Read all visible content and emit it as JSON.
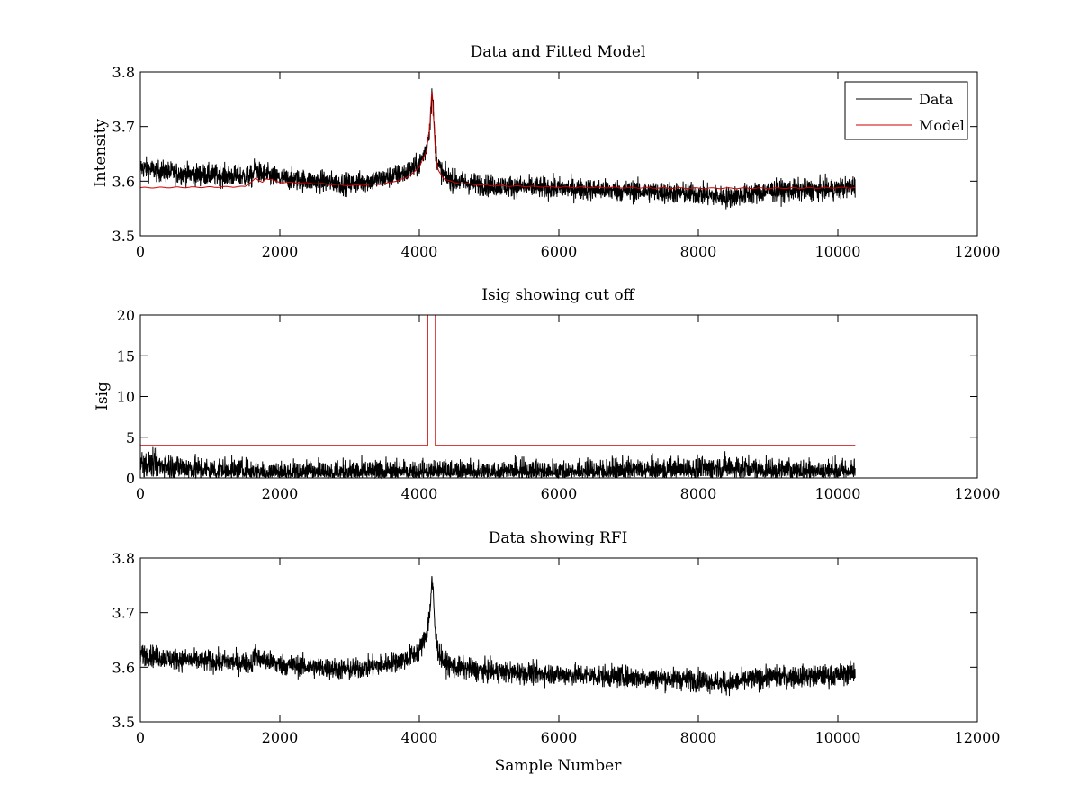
{
  "figure": {
    "background": "#ffffff"
  },
  "chart_data": [
    {
      "type": "line",
      "title": "Data and Fitted Model",
      "xlabel": "",
      "ylabel": "Intensity",
      "xlim": [
        0,
        12000
      ],
      "ylim": [
        3.5,
        3.8
      ],
      "xticks": [
        0,
        2000,
        4000,
        6000,
        8000,
        10000,
        12000
      ],
      "yticks": [
        3.5,
        3.6,
        3.7,
        3.8
      ],
      "ytick_labels": [
        "3.5",
        "3.6",
        "3.7",
        "3.8"
      ],
      "legend": {
        "placement": "top-right",
        "entries": [
          "Data",
          "Model"
        ]
      },
      "series": [
        {
          "name": "Data",
          "color": "#000000",
          "style": "noisy",
          "x": [
            0,
            200,
            500,
            800,
            1200,
            1600,
            1650,
            1700,
            2000,
            2500,
            3000,
            3500,
            3800,
            4000,
            4100,
            4150,
            4180,
            4200,
            4230,
            4270,
            4350,
            4500,
            5000,
            6000,
            7000,
            8000,
            8400,
            9000,
            10000,
            10250
          ],
          "y": [
            3.625,
            3.62,
            3.615,
            3.612,
            3.61,
            3.608,
            3.625,
            3.615,
            3.605,
            3.6,
            3.595,
            3.605,
            3.615,
            3.63,
            3.66,
            3.7,
            3.76,
            3.73,
            3.66,
            3.63,
            3.61,
            3.6,
            3.592,
            3.587,
            3.582,
            3.577,
            3.57,
            3.582,
            3.585,
            3.592
          ],
          "noise": 0.01
        },
        {
          "name": "Model",
          "color": "#cc0000",
          "style": "smooth",
          "x": [
            0,
            1000,
            1500,
            1650,
            1700,
            1750,
            1800,
            2000,
            2500,
            3000,
            3500,
            3800,
            4000,
            4100,
            4150,
            4180,
            4200,
            4230,
            4270,
            4350,
            4500,
            5000,
            6000,
            7000,
            8000,
            9000,
            10000,
            10250
          ],
          "y": [
            3.588,
            3.589,
            3.59,
            3.605,
            3.6,
            3.598,
            3.605,
            3.598,
            3.596,
            3.592,
            3.595,
            3.605,
            3.625,
            3.655,
            3.7,
            3.77,
            3.73,
            3.65,
            3.62,
            3.605,
            3.597,
            3.592,
            3.589,
            3.588,
            3.587,
            3.587,
            3.588,
            3.588
          ],
          "noise": 0
        }
      ]
    },
    {
      "type": "line",
      "title": "Isig showing cut off",
      "xlabel": "",
      "ylabel": "Isig",
      "xlim": [
        0,
        12000
      ],
      "ylim": [
        0,
        20
      ],
      "xticks": [
        0,
        2000,
        4000,
        6000,
        8000,
        10000,
        12000
      ],
      "yticks": [
        0,
        5,
        10,
        15,
        20
      ],
      "ytick_labels": [
        "0",
        "5",
        "10",
        "15",
        "20"
      ],
      "series": [
        {
          "name": "Isig",
          "color": "#000000",
          "style": "noisy-positive",
          "x": [
            0,
            500,
            1000,
            2000,
            4000,
            6000,
            8000,
            8400,
            9000,
            10250
          ],
          "y": [
            1.8,
            1.4,
            0.9,
            0.6,
            0.6,
            0.7,
            1.0,
            1.3,
            0.9,
            0.8
          ],
          "noise": 0.9
        },
        {
          "name": "Cut off",
          "color": "#cc0000",
          "style": "step",
          "x": [
            0,
            4120,
            4120,
            4230,
            4230,
            10250
          ],
          "y": [
            4,
            4,
            20,
            20,
            4,
            4
          ],
          "noise": 0
        }
      ]
    },
    {
      "type": "line",
      "title": "Data showing RFI",
      "xlabel": "Sample Number",
      "ylabel": "",
      "xlim": [
        0,
        12000
      ],
      "ylim": [
        3.5,
        3.8
      ],
      "xticks": [
        0,
        2000,
        4000,
        6000,
        8000,
        10000,
        12000
      ],
      "yticks": [
        3.5,
        3.6,
        3.7,
        3.8
      ],
      "ytick_labels": [
        "3.5",
        "3.6",
        "3.7",
        "3.8"
      ],
      "series": [
        {
          "name": "Data",
          "color": "#000000",
          "style": "noisy",
          "x": [
            0,
            200,
            500,
            800,
            1200,
            1600,
            1650,
            1700,
            2000,
            2500,
            3000,
            3500,
            3800,
            4000,
            4100,
            4150,
            4180,
            4200,
            4230,
            4270,
            4350,
            4500,
            5000,
            6000,
            7000,
            8000,
            8400,
            9000,
            10000,
            10250
          ],
          "y": [
            3.625,
            3.62,
            3.615,
            3.612,
            3.61,
            3.608,
            3.625,
            3.615,
            3.605,
            3.6,
            3.595,
            3.605,
            3.615,
            3.63,
            3.66,
            3.7,
            3.76,
            3.73,
            3.66,
            3.63,
            3.61,
            3.6,
            3.592,
            3.587,
            3.582,
            3.577,
            3.57,
            3.582,
            3.585,
            3.592
          ],
          "noise": 0.01
        }
      ]
    }
  ]
}
